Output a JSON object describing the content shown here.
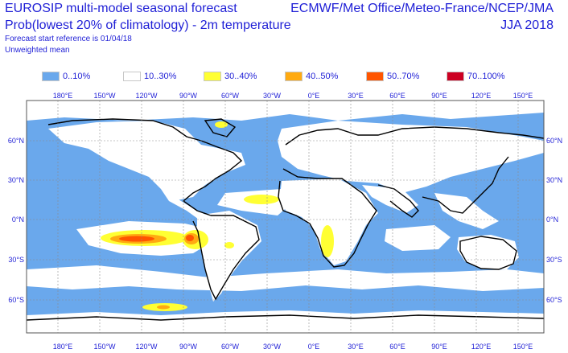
{
  "header": {
    "title": "EUROSIP multi-model seasonal forecast",
    "subtitle": "Prob(lowest 20% of climatology) - 2m temperature",
    "start_ref": "Forecast start reference is 01/04/18",
    "weighting": "Unweighted mean",
    "sources": "ECMWF/Met Office/Meteo-France/NCEP/JMA",
    "season": "JJA 2018"
  },
  "legend": [
    {
      "label": "0..10%",
      "color": "#6aa8ec"
    },
    {
      "label": "10..30%",
      "color": "#ffffff"
    },
    {
      "label": "30..40%",
      "color": "#ffff33"
    },
    {
      "label": "40..50%",
      "color": "#ffaa11"
    },
    {
      "label": "50..70%",
      "color": "#ff5500"
    },
    {
      "label": "70..100%",
      "color": "#cc0022"
    }
  ],
  "axes": {
    "lon_labels": [
      "180°E",
      "150°W",
      "120°W",
      "90°W",
      "60°W",
      "30°W",
      "0°E",
      "30°E",
      "60°E",
      "90°E",
      "120°E",
      "150°E"
    ],
    "lat_labels": [
      "60°N",
      "30°N",
      "0°N",
      "30°S",
      "60°S"
    ]
  }
}
